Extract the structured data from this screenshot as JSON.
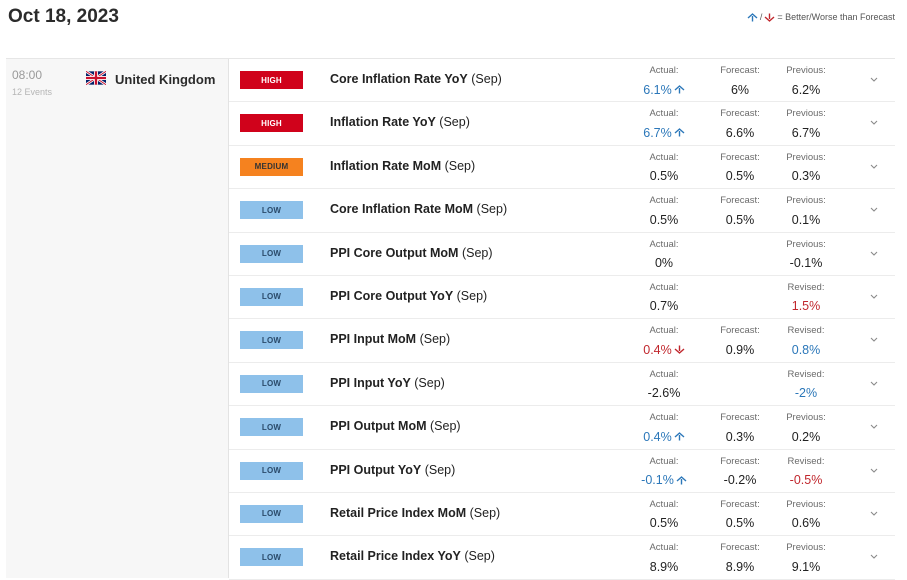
{
  "header": {
    "date": "Oct 18, 2023",
    "legend_text": "= Better/Worse than Forecast",
    "legend_sep": "/",
    "better_color": "#2b77b9",
    "worse_color": "#c1272d"
  },
  "group": {
    "time": "08:00",
    "events_count": "12 Events",
    "country": "United Kingdom",
    "flag_icon": "uk-flag-icon"
  },
  "labels": {
    "actual": "Actual:",
    "forecast": "Forecast:",
    "previous": "Previous:",
    "revised": "Revised:"
  },
  "events": [
    {
      "impact": "HIGH",
      "impact_class": "high",
      "name_bold": "Core Inflation Rate YoY",
      "name_rest": " (Sep)",
      "actual": "6.1%",
      "actual_state": "better",
      "forecast": "6%",
      "prev_label": "Previous:",
      "previous": "6.2%",
      "prev_state": ""
    },
    {
      "impact": "HIGH",
      "impact_class": "high",
      "name_bold": "Inflation Rate YoY",
      "name_rest": " (Sep)",
      "actual": "6.7%",
      "actual_state": "better",
      "forecast": "6.6%",
      "prev_label": "Previous:",
      "previous": "6.7%",
      "prev_state": ""
    },
    {
      "impact": "MEDIUM",
      "impact_class": "medium",
      "name_bold": "Inflation Rate MoM",
      "name_rest": " (Sep)",
      "actual": "0.5%",
      "actual_state": "",
      "forecast": "0.5%",
      "prev_label": "Previous:",
      "previous": "0.3%",
      "prev_state": ""
    },
    {
      "impact": "LOW",
      "impact_class": "low",
      "name_bold": "Core Inflation Rate MoM",
      "name_rest": " (Sep)",
      "actual": "0.5%",
      "actual_state": "",
      "forecast": "0.5%",
      "prev_label": "Previous:",
      "previous": "0.1%",
      "prev_state": ""
    },
    {
      "impact": "LOW",
      "impact_class": "low",
      "name_bold": "PPI Core Output MoM",
      "name_rest": " (Sep)",
      "actual": "0%",
      "actual_state": "",
      "forecast": "",
      "prev_label": "Previous:",
      "previous": "-0.1%",
      "prev_state": ""
    },
    {
      "impact": "LOW",
      "impact_class": "low",
      "name_bold": "PPI Core Output YoY",
      "name_rest": " (Sep)",
      "actual": "0.7%",
      "actual_state": "",
      "forecast": "",
      "prev_label": "Revised:",
      "previous": "1.5%",
      "prev_state": "worse"
    },
    {
      "impact": "LOW",
      "impact_class": "low",
      "name_bold": "PPI Input MoM",
      "name_rest": " (Sep)",
      "actual": "0.4%",
      "actual_state": "worse",
      "forecast": "0.9%",
      "prev_label": "Revised:",
      "previous": "0.8%",
      "prev_state": "better"
    },
    {
      "impact": "LOW",
      "impact_class": "low",
      "name_bold": "PPI Input YoY",
      "name_rest": " (Sep)",
      "actual": "-2.6%",
      "actual_state": "",
      "forecast": "",
      "prev_label": "Revised:",
      "previous": "-2%",
      "prev_state": "better"
    },
    {
      "impact": "LOW",
      "impact_class": "low",
      "name_bold": "PPI Output MoM",
      "name_rest": " (Sep)",
      "actual": "0.4%",
      "actual_state": "better",
      "forecast": "0.3%",
      "prev_label": "Previous:",
      "previous": "0.2%",
      "prev_state": ""
    },
    {
      "impact": "LOW",
      "impact_class": "low",
      "name_bold": "PPI Output YoY",
      "name_rest": " (Sep)",
      "actual": "-0.1%",
      "actual_state": "better",
      "forecast": "-0.2%",
      "prev_label": "Revised:",
      "previous": "-0.5%",
      "prev_state": "worse"
    },
    {
      "impact": "LOW",
      "impact_class": "low",
      "name_bold": "Retail Price Index MoM",
      "name_rest": " (Sep)",
      "actual": "0.5%",
      "actual_state": "",
      "forecast": "0.5%",
      "prev_label": "Previous:",
      "previous": "0.6%",
      "prev_state": ""
    },
    {
      "impact": "LOW",
      "impact_class": "low",
      "name_bold": "Retail Price Index YoY",
      "name_rest": " (Sep)",
      "actual": "8.9%",
      "actual_state": "",
      "forecast": "8.9%",
      "prev_label": "Previous:",
      "previous": "9.1%",
      "prev_state": ""
    }
  ]
}
